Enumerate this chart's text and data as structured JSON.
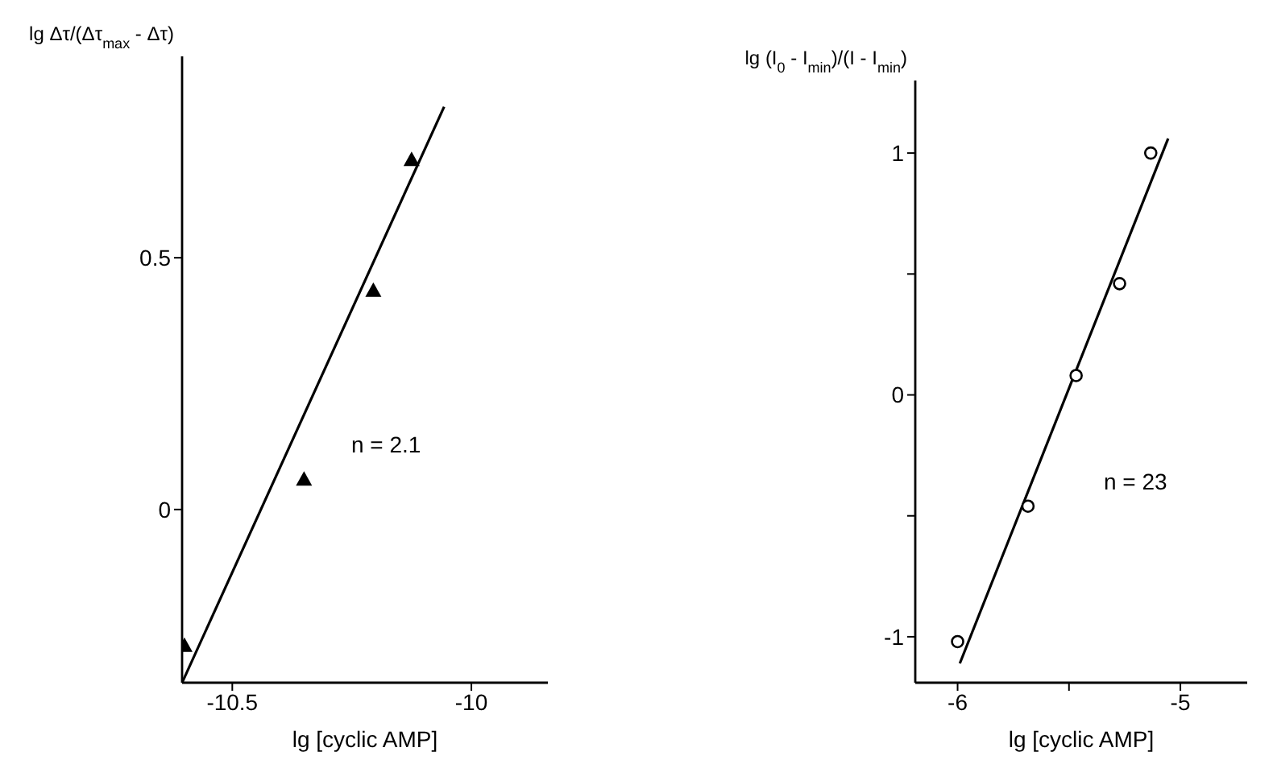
{
  "chart_data": [
    {
      "type": "scatter",
      "xlabel": "lg [cyclic AMP]",
      "ylabel": "lg Δτ/(Δτ$_{max}$ - Δτ)",
      "xlim": [
        -10.605,
        -9.84
      ],
      "xticks": [
        -10.5,
        -10
      ],
      "ylim": [
        -0.344,
        0.9
      ],
      "yticks": [
        0,
        0.5
      ],
      "grid": false,
      "legend": false,
      "series": [
        {
          "type": "scatter",
          "marker": "triangle",
          "color": "#000000",
          "x": [
            -10.6,
            -10.35,
            -10.205,
            -10.125
          ],
          "values": [
            -0.27,
            0.06,
            0.435,
            0.695
          ]
        },
        {
          "type": "line",
          "marker": "none",
          "color": "#000000",
          "x": [
            -10.605,
            -10.057
          ],
          "values": [
            -0.344,
            0.8
          ]
        }
      ],
      "annotations": [
        "n = 2.1"
      ]
    },
    {
      "type": "scatter",
      "xlabel": "lg [cyclic AMP]",
      "ylabel": "lg (I$_{0}$ - I$_{min}$)/(I - I$_{min}$)",
      "xlim": [
        -6.19,
        -4.7
      ],
      "xticks": [
        -6,
        {
          "value": -5.5,
          "label": null
        },
        -5
      ],
      "ylim": [
        -1.19,
        1.3
      ],
      "yticks": [
        -1,
        {
          "value": -0.5,
          "label": null
        },
        0,
        {
          "value": 0.5,
          "label": null
        },
        1
      ],
      "grid": false,
      "legend": false,
      "series": [
        {
          "type": "scatter",
          "marker": "circle",
          "color": "#000000",
          "x": [
            -6.0,
            -5.684,
            -5.468,
            -5.273,
            -5.133
          ],
          "values": [
            -1.02,
            -0.46,
            0.08,
            0.46,
            1.0
          ]
        },
        {
          "type": "line",
          "marker": "none",
          "color": "#000000",
          "x": [
            -5.99,
            -5.055
          ],
          "values": [
            -1.11,
            1.06
          ]
        }
      ],
      "annotations": [
        "n = 23"
      ]
    }
  ]
}
